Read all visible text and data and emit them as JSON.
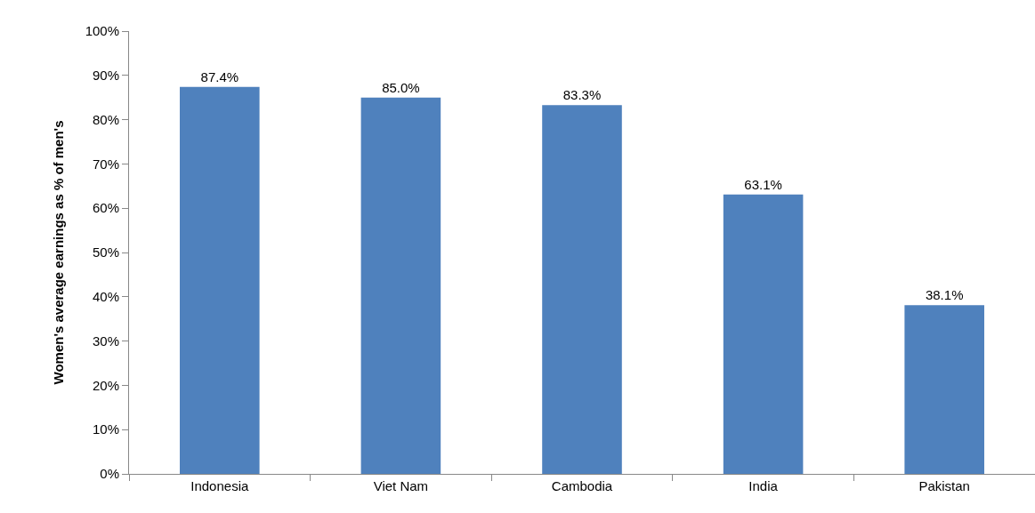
{
  "chart_data": {
    "type": "bar",
    "ylabel": "Women's average earnings as % of men's",
    "categories": [
      "Indonesia",
      "Viet Nam",
      "Cambodia",
      "India",
      "Pakistan"
    ],
    "values": [
      87.4,
      85.0,
      83.3,
      63.1,
      38.1
    ],
    "value_labels": [
      "87.4%",
      "85.0%",
      "83.3%",
      "63.1%",
      "38.1%"
    ],
    "color": "#4f81bd",
    "ylim": [
      0,
      100
    ],
    "yticks": [
      {
        "value": 0,
        "label": "0%"
      },
      {
        "value": 10,
        "label": "10%"
      },
      {
        "value": 20,
        "label": "20%"
      },
      {
        "value": 30,
        "label": "30%"
      },
      {
        "value": 40,
        "label": "40%"
      },
      {
        "value": 50,
        "label": "50%"
      },
      {
        "value": 60,
        "label": "60%"
      },
      {
        "value": 70,
        "label": "70%"
      },
      {
        "value": 80,
        "label": "80%"
      },
      {
        "value": 90,
        "label": "90%"
      },
      {
        "value": 100,
        "label": "100%"
      }
    ],
    "grid": false,
    "legend": false
  }
}
